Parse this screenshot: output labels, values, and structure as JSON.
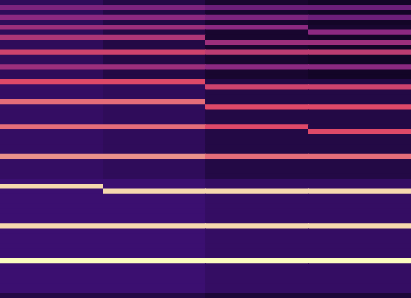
{
  "chart_data": {
    "type": "heatmap",
    "tick_labels": false,
    "zlim": [
      0,
      1
    ],
    "values": [
      [
        0.2,
        0.15,
        0.1,
        0.08
      ],
      [
        0.45,
        0.45,
        0.4,
        0.4
      ],
      [
        0.2,
        0.15,
        0.1,
        0.08
      ],
      [
        0.5,
        0.5,
        0.45,
        0.4
      ],
      [
        0.2,
        0.15,
        0.1,
        0.08
      ],
      [
        0.55,
        0.55,
        0.5,
        0.1
      ],
      [
        0.2,
        0.15,
        0.1,
        0.5
      ],
      [
        0.6,
        0.6,
        0.1,
        0.08
      ],
      [
        0.2,
        0.15,
        0.55,
        0.55
      ],
      [
        0.2,
        0.15,
        0.1,
        0.08
      ],
      [
        0.7,
        0.7,
        0.65,
        0.65
      ],
      [
        0.2,
        0.15,
        0.1,
        0.08
      ],
      [
        0.2,
        0.15,
        0.1,
        0.08
      ],
      [
        0.55,
        0.55,
        0.5,
        0.5
      ],
      [
        0.2,
        0.15,
        0.1,
        0.08
      ],
      [
        0.2,
        0.15,
        0.1,
        0.08
      ],
      [
        0.75,
        0.75,
        0.15,
        0.15
      ],
      [
        0.22,
        0.2,
        0.7,
        0.7
      ],
      [
        0.22,
        0.2,
        0.15,
        0.15
      ],
      [
        0.22,
        0.2,
        0.15,
        0.15
      ],
      [
        0.8,
        0.8,
        0.15,
        0.15
      ],
      [
        0.22,
        0.2,
        0.75,
        0.75
      ],
      [
        0.22,
        0.2,
        0.15,
        0.15
      ],
      [
        0.22,
        0.2,
        0.15,
        0.15
      ],
      [
        0.22,
        0.2,
        0.15,
        0.15
      ],
      [
        0.8,
        0.8,
        0.75,
        0.15
      ],
      [
        0.22,
        0.2,
        0.15,
        0.75
      ],
      [
        0.22,
        0.2,
        0.15,
        0.15
      ],
      [
        0.22,
        0.2,
        0.15,
        0.15
      ],
      [
        0.22,
        0.2,
        0.15,
        0.15
      ],
      [
        0.22,
        0.2,
        0.15,
        0.15
      ],
      [
        0.85,
        0.85,
        0.8,
        0.8
      ],
      [
        0.22,
        0.2,
        0.15,
        0.15
      ],
      [
        0.22,
        0.2,
        0.15,
        0.15
      ],
      [
        0.22,
        0.2,
        0.15,
        0.15
      ],
      [
        0.22,
        0.2,
        0.15,
        0.15
      ],
      [
        0.25,
        0.25,
        0.22,
        0.22
      ],
      [
        0.95,
        0.25,
        0.22,
        0.22
      ],
      [
        0.25,
        0.95,
        0.95,
        0.95
      ],
      [
        0.25,
        0.25,
        0.22,
        0.22
      ],
      [
        0.25,
        0.25,
        0.22,
        0.22
      ],
      [
        0.25,
        0.25,
        0.22,
        0.22
      ],
      [
        0.25,
        0.25,
        0.22,
        0.22
      ],
      [
        0.25,
        0.25,
        0.22,
        0.22
      ],
      [
        0.25,
        0.25,
        0.22,
        0.22
      ],
      [
        0.95,
        0.95,
        0.95,
        0.95
      ],
      [
        0.25,
        0.25,
        0.22,
        0.22
      ],
      [
        0.25,
        0.25,
        0.22,
        0.22
      ],
      [
        0.25,
        0.25,
        0.22,
        0.22
      ],
      [
        0.25,
        0.25,
        0.22,
        0.22
      ],
      [
        0.25,
        0.25,
        0.22,
        0.22
      ],
      [
        0.25,
        0.25,
        0.22,
        0.22
      ],
      [
        1,
        1,
        1,
        1
      ],
      [
        0.25,
        0.25,
        0.22,
        0.22
      ],
      [
        0.25,
        0.25,
        0.22,
        0.22
      ],
      [
        0.25,
        0.25,
        0.22,
        0.22
      ],
      [
        0.25,
        0.25,
        0.22,
        0.22
      ],
      [
        0.25,
        0.25,
        0.22,
        0.22
      ],
      [
        0.25,
        0.25,
        0.22,
        0.22
      ],
      [
        0.15,
        0.15,
        0.12,
        0.12
      ]
    ]
  }
}
